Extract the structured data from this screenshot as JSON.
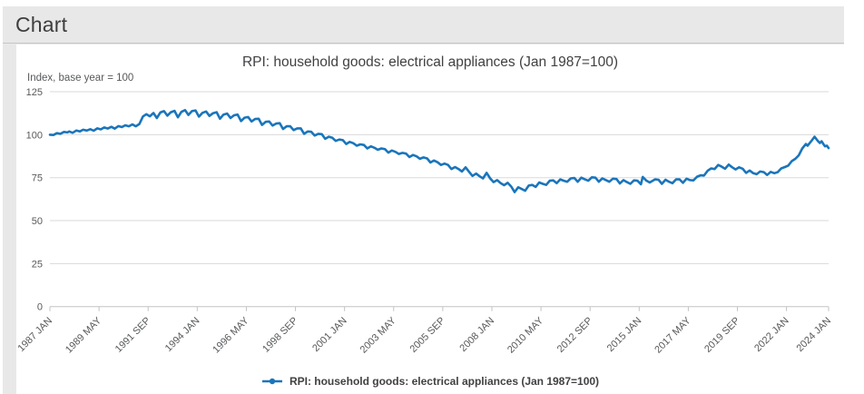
{
  "page": {
    "heading": "Chart"
  },
  "chart": {
    "title": "RPI: household goods: electrical appliances (Jan 1987=100)",
    "y_unit_label": "Index, base year = 100",
    "legend_label": "RPI: household goods: electrical appliances (Jan 1987=100)",
    "colors": {
      "line": "#1a75bb",
      "grid": "#dadada",
      "axis": "#c3c3c3",
      "tick_text": "#58595b",
      "panel_bg": "#e8e8e8"
    }
  },
  "chart_data": {
    "type": "line",
    "title": "RPI: household goods: electrical appliances (Jan 1987=100)",
    "xlabel": "",
    "ylabel": "Index, base year = 100",
    "ylim": [
      0,
      125
    ],
    "yticks": [
      125,
      100,
      75,
      50,
      25,
      0
    ],
    "grid": "horizontal",
    "legend_position": "bottom-center",
    "x_start_label": "1987 JAN",
    "x_end_label": "2024 JAN",
    "xtick_labels": [
      "1987 JAN",
      "1989 MAY",
      "1991 SEP",
      "1994 JAN",
      "1996 MAY",
      "1998 SEP",
      "2001 JAN",
      "2003 MAY",
      "2005 SEP",
      "2008 JAN",
      "2010 MAY",
      "2012 SEP",
      "2015 JAN",
      "2017 MAY",
      "2019 SEP",
      "2022 JAN",
      "2024 JAN"
    ],
    "xtick_months": [
      0,
      28,
      56,
      84,
      112,
      140,
      168,
      196,
      224,
      252,
      280,
      308,
      336,
      364,
      392,
      420,
      444
    ],
    "total_months": 444,
    "series": [
      {
        "name": "RPI: household goods: electrical appliances (Jan 1987=100)",
        "color": "#1a75bb",
        "points": [
          [
            1987.0,
            100.0
          ],
          [
            1987.17,
            99.8
          ],
          [
            1987.33,
            100.9
          ],
          [
            1987.5,
            100.5
          ],
          [
            1987.67,
            101.6
          ],
          [
            1987.83,
            101.3
          ],
          [
            1987.92,
            101.9
          ],
          [
            1988.08,
            101.1
          ],
          [
            1988.25,
            102.4
          ],
          [
            1988.42,
            101.9
          ],
          [
            1988.58,
            102.9
          ],
          [
            1988.75,
            102.4
          ],
          [
            1988.92,
            103.2
          ],
          [
            1989.08,
            102.3
          ],
          [
            1989.25,
            103.7
          ],
          [
            1989.42,
            103.1
          ],
          [
            1989.58,
            104.2
          ],
          [
            1989.75,
            103.6
          ],
          [
            1989.92,
            104.6
          ],
          [
            1990.08,
            103.5
          ],
          [
            1990.25,
            105.0
          ],
          [
            1990.42,
            104.4
          ],
          [
            1990.58,
            105.5
          ],
          [
            1990.75,
            104.9
          ],
          [
            1990.92,
            106.0
          ],
          [
            1991.08,
            104.9
          ],
          [
            1991.25,
            106.2
          ],
          [
            1991.42,
            110.6
          ],
          [
            1991.58,
            111.9
          ],
          [
            1991.75,
            110.7
          ],
          [
            1991.92,
            112.6
          ],
          [
            1992.08,
            109.7
          ],
          [
            1992.25,
            112.9
          ],
          [
            1992.42,
            113.7
          ],
          [
            1992.58,
            111.1
          ],
          [
            1992.75,
            113.1
          ],
          [
            1992.92,
            113.9
          ],
          [
            1993.08,
            110.1
          ],
          [
            1993.25,
            113.3
          ],
          [
            1993.42,
            114.3
          ],
          [
            1993.58,
            111.5
          ],
          [
            1993.75,
            113.7
          ],
          [
            1993.92,
            114.1
          ],
          [
            1994.08,
            110.5
          ],
          [
            1994.25,
            112.7
          ],
          [
            1994.42,
            113.5
          ],
          [
            1994.58,
            110.9
          ],
          [
            1994.75,
            112.5
          ],
          [
            1994.92,
            113.1
          ],
          [
            1995.08,
            109.3
          ],
          [
            1995.25,
            111.7
          ],
          [
            1995.42,
            112.3
          ],
          [
            1995.58,
            109.7
          ],
          [
            1995.75,
            111.3
          ],
          [
            1995.92,
            111.7
          ],
          [
            1996.08,
            107.9
          ],
          [
            1996.25,
            109.9
          ],
          [
            1996.42,
            110.3
          ],
          [
            1996.58,
            107.7
          ],
          [
            1996.75,
            109.1
          ],
          [
            1996.92,
            109.3
          ],
          [
            1997.08,
            105.7
          ],
          [
            1997.25,
            107.5
          ],
          [
            1997.42,
            107.7
          ],
          [
            1997.58,
            105.3
          ],
          [
            1997.75,
            106.5
          ],
          [
            1997.92,
            106.7
          ],
          [
            1998.08,
            103.3
          ],
          [
            1998.25,
            104.9
          ],
          [
            1998.42,
            104.9
          ],
          [
            1998.58,
            102.7
          ],
          [
            1998.75,
            103.7
          ],
          [
            1998.92,
            103.7
          ],
          [
            1999.08,
            100.5
          ],
          [
            1999.25,
            101.9
          ],
          [
            1999.42,
            101.7
          ],
          [
            1999.58,
            99.5
          ],
          [
            1999.75,
            100.5
          ],
          [
            1999.92,
            100.3
          ],
          [
            2000.08,
            97.6
          ],
          [
            2000.25,
            98.8
          ],
          [
            2000.42,
            98.2
          ],
          [
            2000.58,
            96.4
          ],
          [
            2000.75,
            97.2
          ],
          [
            2000.92,
            96.8
          ],
          [
            2001.08,
            94.6
          ],
          [
            2001.25,
            95.8
          ],
          [
            2001.42,
            95.0
          ],
          [
            2001.58,
            93.6
          ],
          [
            2001.75,
            94.4
          ],
          [
            2001.92,
            94.0
          ],
          [
            2002.08,
            92.0
          ],
          [
            2002.25,
            93.2
          ],
          [
            2002.42,
            92.4
          ],
          [
            2002.58,
            91.2
          ],
          [
            2002.75,
            92.0
          ],
          [
            2002.92,
            91.6
          ],
          [
            2003.08,
            89.6
          ],
          [
            2003.25,
            90.8
          ],
          [
            2003.42,
            90.0
          ],
          [
            2003.58,
            88.8
          ],
          [
            2003.75,
            89.4
          ],
          [
            2003.92,
            89.0
          ],
          [
            2004.08,
            87.0
          ],
          [
            2004.25,
            88.2
          ],
          [
            2004.42,
            87.4
          ],
          [
            2004.58,
            86.0
          ],
          [
            2004.75,
            86.8
          ],
          [
            2004.92,
            86.2
          ],
          [
            2005.08,
            83.8
          ],
          [
            2005.25,
            85.0
          ],
          [
            2005.42,
            84.0
          ],
          [
            2005.58,
            82.4
          ],
          [
            2005.75,
            83.2
          ],
          [
            2005.92,
            82.4
          ],
          [
            2006.08,
            80.0
          ],
          [
            2006.25,
            81.2
          ],
          [
            2006.42,
            80.0
          ],
          [
            2006.58,
            78.6
          ],
          [
            2006.75,
            81.0
          ],
          [
            2006.92,
            78.4
          ],
          [
            2007.08,
            76.0
          ],
          [
            2007.25,
            77.4
          ],
          [
            2007.42,
            75.8
          ],
          [
            2007.58,
            74.6
          ],
          [
            2007.75,
            77.8
          ],
          [
            2007.92,
            74.6
          ],
          [
            2008.08,
            72.4
          ],
          [
            2008.25,
            73.6
          ],
          [
            2008.42,
            71.8
          ],
          [
            2008.58,
            70.6
          ],
          [
            2008.75,
            72.0
          ],
          [
            2008.92,
            69.8
          ],
          [
            2009.08,
            66.6
          ],
          [
            2009.25,
            69.4
          ],
          [
            2009.42,
            68.4
          ],
          [
            2009.58,
            67.4
          ],
          [
            2009.75,
            70.4
          ],
          [
            2009.92,
            70.8
          ],
          [
            2010.08,
            69.6
          ],
          [
            2010.25,
            72.2
          ],
          [
            2010.42,
            71.4
          ],
          [
            2010.58,
            70.8
          ],
          [
            2010.75,
            73.2
          ],
          [
            2010.92,
            73.4
          ],
          [
            2011.08,
            71.8
          ],
          [
            2011.25,
            74.0
          ],
          [
            2011.42,
            73.2
          ],
          [
            2011.58,
            72.6
          ],
          [
            2011.75,
            74.6
          ],
          [
            2011.92,
            74.8
          ],
          [
            2012.08,
            72.6
          ],
          [
            2012.25,
            75.0
          ],
          [
            2012.42,
            74.0
          ],
          [
            2012.58,
            73.2
          ],
          [
            2012.75,
            75.2
          ],
          [
            2012.92,
            75.0
          ],
          [
            2013.08,
            72.6
          ],
          [
            2013.25,
            74.6
          ],
          [
            2013.42,
            73.6
          ],
          [
            2013.58,
            72.6
          ],
          [
            2013.75,
            74.4
          ],
          [
            2013.92,
            74.2
          ],
          [
            2014.08,
            71.6
          ],
          [
            2014.25,
            73.6
          ],
          [
            2014.42,
            72.4
          ],
          [
            2014.58,
            71.4
          ],
          [
            2014.75,
            73.4
          ],
          [
            2014.92,
            73.2
          ],
          [
            2015.08,
            71.2
          ],
          [
            2015.17,
            75.4
          ],
          [
            2015.33,
            73.4
          ],
          [
            2015.5,
            72.2
          ],
          [
            2015.75,
            74.0
          ],
          [
            2015.92,
            73.8
          ],
          [
            2016.08,
            71.4
          ],
          [
            2016.25,
            73.8
          ],
          [
            2016.42,
            72.6
          ],
          [
            2016.58,
            71.8
          ],
          [
            2016.75,
            74.0
          ],
          [
            2016.92,
            74.0
          ],
          [
            2017.08,
            72.0
          ],
          [
            2017.25,
            74.4
          ],
          [
            2017.42,
            73.6
          ],
          [
            2017.58,
            73.4
          ],
          [
            2017.75,
            75.6
          ],
          [
            2017.92,
            76.4
          ],
          [
            2018.08,
            76.2
          ],
          [
            2018.25,
            79.0
          ],
          [
            2018.42,
            80.4
          ],
          [
            2018.58,
            80.0
          ],
          [
            2018.75,
            82.4
          ],
          [
            2018.92,
            81.4
          ],
          [
            2019.08,
            80.2
          ],
          [
            2019.25,
            82.6
          ],
          [
            2019.42,
            81.0
          ],
          [
            2019.58,
            79.8
          ],
          [
            2019.75,
            81.0
          ],
          [
            2019.92,
            80.2
          ],
          [
            2020.08,
            77.8
          ],
          [
            2020.25,
            79.2
          ],
          [
            2020.42,
            77.6
          ],
          [
            2020.58,
            77.0
          ],
          [
            2020.75,
            78.6
          ],
          [
            2020.92,
            78.2
          ],
          [
            2021.08,
            76.6
          ],
          [
            2021.25,
            78.4
          ],
          [
            2021.42,
            77.6
          ],
          [
            2021.58,
            78.2
          ],
          [
            2021.75,
            80.4
          ],
          [
            2021.92,
            81.2
          ],
          [
            2022.08,
            82.0
          ],
          [
            2022.25,
            84.6
          ],
          [
            2022.42,
            86.0
          ],
          [
            2022.58,
            88.0
          ],
          [
            2022.75,
            92.0
          ],
          [
            2022.92,
            94.6
          ],
          [
            2023.0,
            93.6
          ],
          [
            2023.17,
            96.2
          ],
          [
            2023.33,
            98.8
          ],
          [
            2023.42,
            97.4
          ],
          [
            2023.5,
            96.2
          ],
          [
            2023.58,
            95.2
          ],
          [
            2023.67,
            96.2
          ],
          [
            2023.75,
            94.6
          ],
          [
            2023.83,
            93.2
          ],
          [
            2023.92,
            93.6
          ],
          [
            2024.0,
            92.2
          ]
        ]
      }
    ]
  }
}
